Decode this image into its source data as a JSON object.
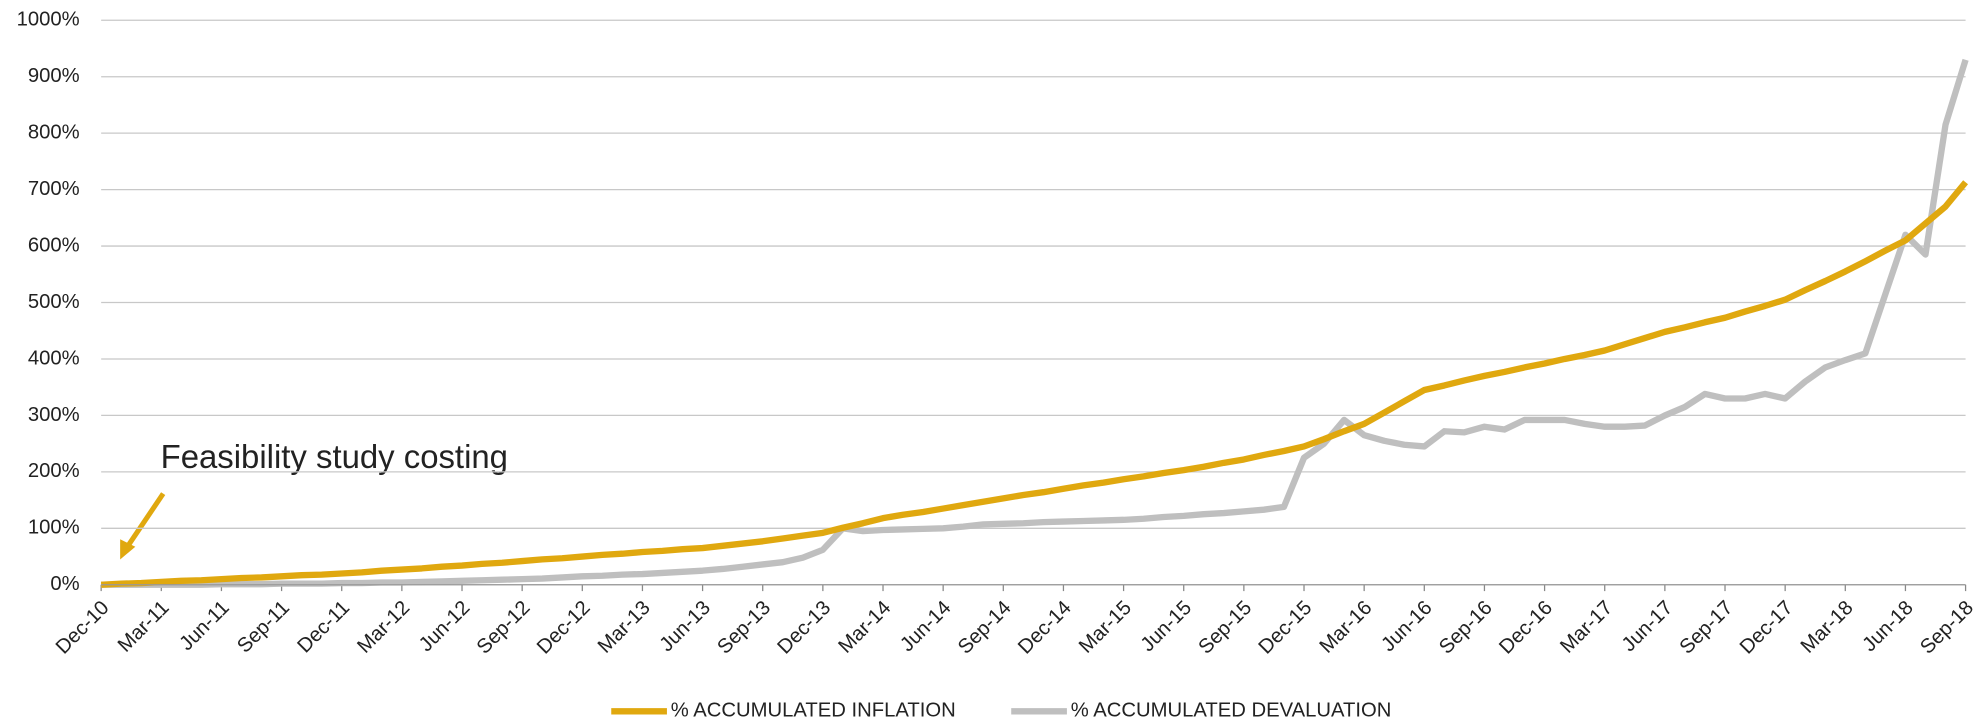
{
  "chart_data": {
    "type": "line",
    "categories": [
      "Dec-10",
      null,
      null,
      "Mar-11",
      null,
      null,
      "Jun-11",
      null,
      null,
      "Sep-11",
      null,
      null,
      "Dec-11",
      null,
      null,
      "Mar-12",
      null,
      null,
      "Jun-12",
      null,
      null,
      "Sep-12",
      null,
      null,
      "Dec-12",
      null,
      null,
      "Mar-13",
      null,
      null,
      "Jun-13",
      null,
      null,
      "Sep-13",
      null,
      null,
      "Dec-13",
      null,
      null,
      "Mar-14",
      null,
      null,
      "Jun-14",
      null,
      null,
      "Sep-14",
      null,
      null,
      "Dec-14",
      null,
      null,
      "Mar-15",
      null,
      null,
      "Jun-15",
      null,
      null,
      "Sep-15",
      null,
      null,
      "Dec-15",
      null,
      null,
      "Mar-16",
      null,
      null,
      "Jun-16",
      null,
      null,
      "Sep-16",
      null,
      null,
      "Dec-16",
      null,
      null,
      "Mar-17",
      null,
      null,
      "Jun-17",
      null,
      null,
      "Sep-17",
      null,
      null,
      "Dec-17",
      null,
      null,
      "Mar-18",
      null,
      null,
      "Jun-18",
      null,
      null,
      "Sep-18"
    ],
    "series": [
      {
        "name": "% ACCUMULATED INFLATION",
        "color": "#e0a80f",
        "values": [
          0,
          2,
          3,
          5,
          7,
          8,
          10,
          12,
          13,
          15,
          17,
          18,
          20,
          22,
          25,
          27,
          29,
          32,
          34,
          37,
          39,
          42,
          45,
          47,
          50,
          53,
          55,
          58,
          60,
          63,
          65,
          69,
          73,
          77,
          82,
          87,
          92,
          101,
          109,
          118,
          124,
          129,
          135,
          141,
          147,
          153,
          159,
          164,
          170,
          176,
          181,
          187,
          192,
          198,
          203,
          209,
          216,
          222,
          230,
          237,
          245,
          258,
          272,
          285,
          305,
          325,
          345,
          353,
          362,
          370,
          377,
          385,
          392,
          400,
          407,
          415,
          426,
          437,
          448,
          456,
          465,
          473,
          484,
          494,
          505,
          522,
          538,
          555,
          573,
          592,
          610,
          640,
          670,
          713
        ]
      },
      {
        "name": "% ACCUMULATED DEVALUATION",
        "color": "#bfbfbf",
        "values": [
          0,
          0,
          0,
          0,
          0,
          0,
          1,
          1,
          1,
          2,
          2,
          2,
          3,
          3,
          4,
          4,
          5,
          6,
          7,
          8,
          9,
          10,
          11,
          13,
          15,
          16,
          18,
          19,
          21,
          23,
          25,
          28,
          32,
          36,
          40,
          48,
          62,
          100,
          95,
          97,
          98,
          99,
          100,
          103,
          107,
          108,
          109,
          111,
          112,
          113,
          114,
          115,
          117,
          120,
          122,
          125,
          127,
          130,
          133,
          138,
          225,
          250,
          292,
          265,
          255,
          248,
          245,
          272,
          270,
          280,
          275,
          292,
          292,
          292,
          285,
          280,
          280,
          282,
          300,
          315,
          338,
          330,
          330,
          338,
          330,
          360,
          385,
          398,
          410,
          515,
          620,
          585,
          815,
          930
        ]
      }
    ],
    "ylim": [
      0,
      1000
    ],
    "yticks": [
      {
        "value": 0,
        "label": "0%"
      },
      {
        "value": 100,
        "label": "100%"
      },
      {
        "value": 200,
        "label": "200%"
      },
      {
        "value": 300,
        "label": "300%"
      },
      {
        "value": 400,
        "label": "400%"
      },
      {
        "value": 500,
        "label": "500%"
      },
      {
        "value": 600,
        "label": "600%"
      },
      {
        "value": 700,
        "label": "700%"
      },
      {
        "value": 800,
        "label": "800%"
      },
      {
        "value": 900,
        "label": "900%"
      },
      {
        "value": 1000,
        "label": "1000%"
      }
    ],
    "grid": true,
    "legend": "bottom",
    "annotation": "Feasibility study costing"
  }
}
